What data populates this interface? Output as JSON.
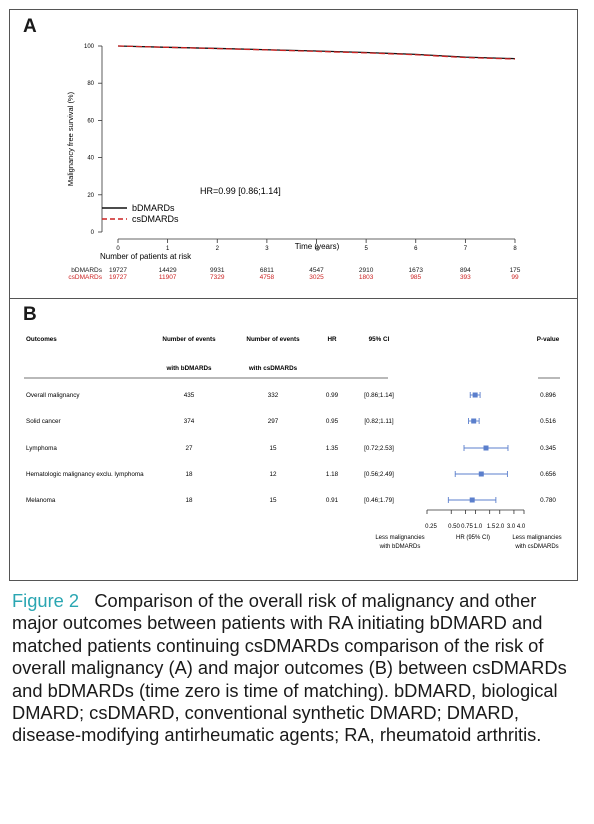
{
  "panel_a": {
    "label": "A",
    "hr_text": "HR=0.99 [0.86;1.14]",
    "risk_title": "Number of patients at risk",
    "risk_rows": [
      {
        "label": "bDMARDs",
        "color": "#1a1a1a",
        "values": [
          "19727",
          "14429",
          "9931",
          "6811",
          "4547",
          "2910",
          "1673",
          "894",
          "175"
        ]
      },
      {
        "label": "csDMARDs",
        "color": "#cc2222",
        "values": [
          "19727",
          "11907",
          "7329",
          "4758",
          "3025",
          "1803",
          "985",
          "393",
          "99"
        ]
      }
    ]
  },
  "panel_b": {
    "label": "B",
    "headers": {
      "outcomes": "Outcomes",
      "events_b_1": "Number of events",
      "events_b_2": "with bDMARDs",
      "events_cs_1": "Number of events",
      "events_cs_2": "with csDMARDs",
      "hr": "HR",
      "ci": "95% CI",
      "pvalue": "P-value"
    },
    "rows": [
      {
        "outcome": "Overall malignancy",
        "events_b": "435",
        "events_cs": "332",
        "hr": "0.99",
        "ci": "[0.86;1.14]",
        "p": "0.896"
      },
      {
        "outcome": "Solid cancer",
        "events_b": "374",
        "events_cs": "297",
        "hr": "0.95",
        "ci": "[0.82;1.11]",
        "p": "0.516"
      },
      {
        "outcome": "Lymphoma",
        "events_b": "27",
        "events_cs": "15",
        "hr": "1.35",
        "ci": "[0.72;2.53]",
        "p": "0.345"
      },
      {
        "outcome": "Hematologic malignancy exclu. lymphoma",
        "events_b": "18",
        "events_cs": "12",
        "hr": "1.18",
        "ci": "[0.56;2.49]",
        "p": "0.656"
      },
      {
        "outcome": "Melanoma",
        "events_b": "18",
        "events_cs": "15",
        "hr": "0.91",
        "ci": "[0.46;1.79]",
        "p": "0.780"
      }
    ],
    "axis_ticks": [
      "0.25",
      "0.50",
      "0.75",
      "1.0",
      "1.5",
      "2.0",
      "3.0",
      "4.0"
    ],
    "axis_label": "HR (95% CI)",
    "left_note_1": "Less malignancies",
    "left_note_2": "with bDMARDs",
    "right_note_1": "Less malignancies",
    "right_note_2": "with csDMARDs"
  },
  "chart_data": [
    {
      "type": "line",
      "xlabel": "Time (years)",
      "ylabel": "Malignancy free survival (%)",
      "xlim": [
        0,
        8
      ],
      "ylim": [
        0,
        100
      ],
      "x_ticks": [
        "0",
        "1",
        "2",
        "3",
        "4",
        "5",
        "6",
        "7",
        "8"
      ],
      "y_ticks": [
        "0",
        "20",
        "40",
        "60",
        "80",
        "100"
      ],
      "legend_position": "bottom-left",
      "series": [
        {
          "name": "bDMARDs",
          "color": "#111111",
          "dash": "solid",
          "x": [
            0,
            1,
            2,
            3,
            4,
            5,
            6,
            7,
            8
          ],
          "y": [
            100,
            99.3,
            98.7,
            98,
            97.3,
            96.5,
            95.5,
            94,
            93.2
          ]
        },
        {
          "name": "csDMARDs",
          "color": "#cc2222",
          "dash": "dashed",
          "x": [
            0,
            1,
            2,
            3,
            4,
            5,
            6,
            7,
            8
          ],
          "y": [
            100,
            99.3,
            98.6,
            97.9,
            97.1,
            96.3,
            95.3,
            93.8,
            93
          ]
        }
      ]
    },
    {
      "type": "scatter",
      "xlabel": "HR (95% CI)",
      "scale": "log",
      "xlim": [
        0.25,
        4.0
      ],
      "marker_color": "#5b7fcc",
      "points": [
        {
          "label": "Overall malignancy",
          "hr": 0.99,
          "lo": 0.86,
          "hi": 1.14
        },
        {
          "label": "Solid cancer",
          "hr": 0.95,
          "lo": 0.82,
          "hi": 1.11
        },
        {
          "label": "Lymphoma",
          "hr": 1.35,
          "lo": 0.72,
          "hi": 2.53
        },
        {
          "label": "Hematologic malignancy exclu. lymphoma",
          "hr": 1.18,
          "lo": 0.56,
          "hi": 2.49
        },
        {
          "label": "Melanoma",
          "hr": 0.91,
          "lo": 0.46,
          "hi": 1.79
        }
      ]
    }
  ],
  "caption": {
    "label": "Figure 2",
    "text": "Comparison of the overall risk of malignancy and other major outcomes between patients with RA initiating bDMARD and matched patients continuing csDMARDs comparison of the risk of overall malignancy (A) and major outcomes (B) between csDMARDs and bDMARDs (time zero is time of matching). bDMARD, biological DMARD; csDMARD, conventional synthetic DMARD; DMARD, disease-modifying antirheumatic agents; RA, rheumatoid arthritis."
  }
}
